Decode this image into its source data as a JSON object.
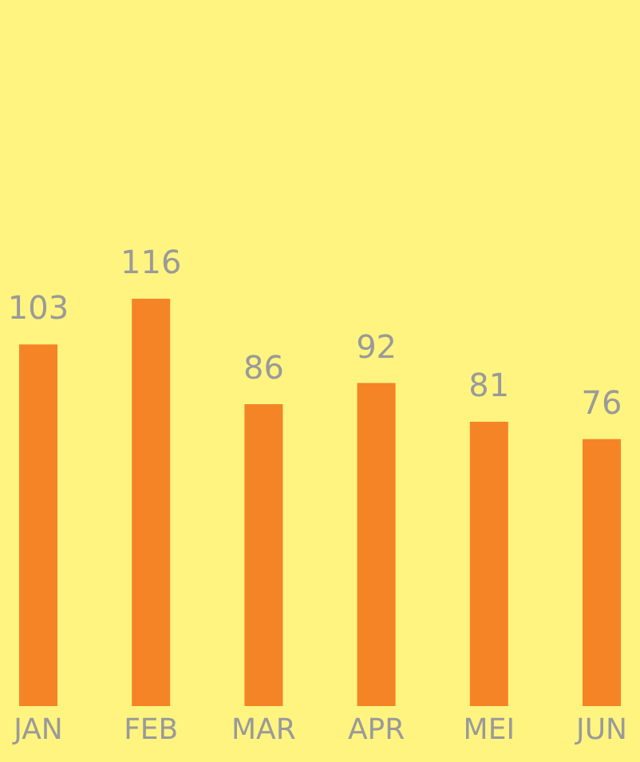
{
  "chart_data": {
    "type": "bar",
    "categories": [
      "JAN",
      "FEB",
      "MAR",
      "APR",
      "MEI",
      "JUN"
    ],
    "values": [
      103,
      116,
      86,
      92,
      81,
      76
    ],
    "color": "#f58426",
    "data_labels": true,
    "grid": false
  }
}
